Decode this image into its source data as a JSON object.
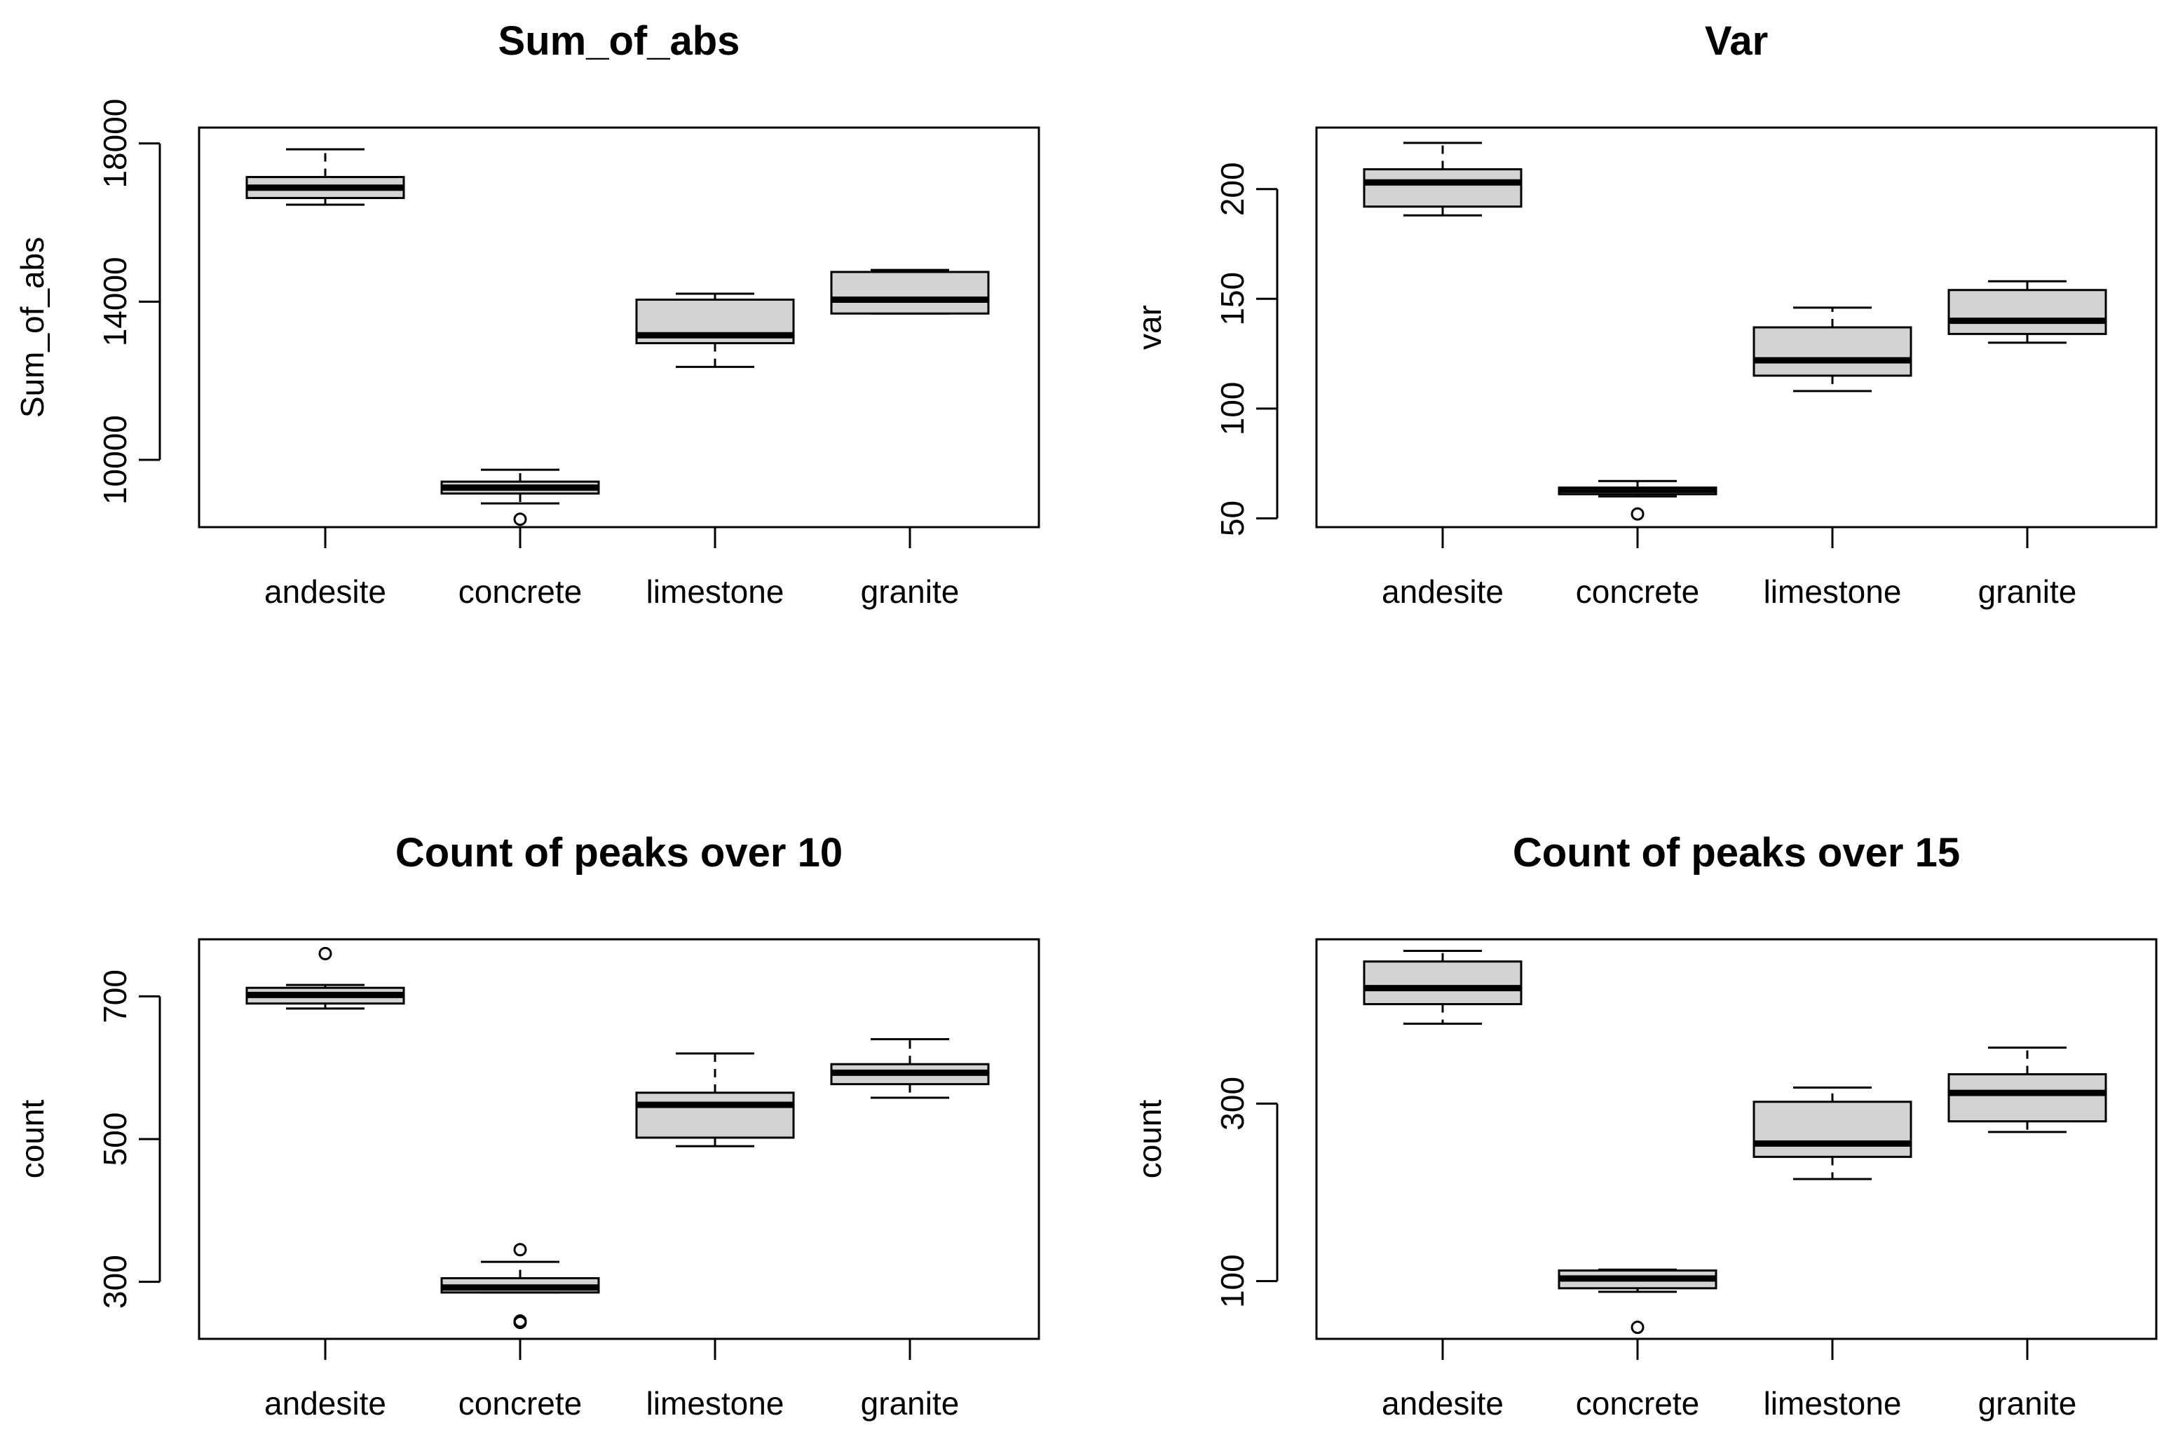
{
  "colors": {
    "box_fill": "#d3d3d3",
    "stroke": "#000000",
    "background": "#ffffff"
  },
  "chart_data": [
    {
      "type": "boxplot",
      "title": "Sum_of_abs",
      "xlabel": "",
      "ylabel": "Sum_of_abs",
      "categories": [
        "andesite",
        "concrete",
        "limestone",
        "granite"
      ],
      "yticks": [
        10000,
        14000,
        18000
      ],
      "ytick_labels": [
        "10000",
        "14000",
        "18000"
      ],
      "ylim": [
        8300,
        18400
      ],
      "boxes": [
        {
          "whisker_low": 16450,
          "q1": 16620,
          "median": 16880,
          "q3": 17150,
          "whisker_high": 17850,
          "outliers": []
        },
        {
          "whisker_low": 8900,
          "q1": 9150,
          "median": 9300,
          "q3": 9450,
          "whisker_high": 9750,
          "outliers": [
            8500
          ]
        },
        {
          "whisker_low": 12350,
          "q1": 12950,
          "median": 13150,
          "q3": 14050,
          "whisker_high": 14200,
          "outliers": []
        },
        {
          "whisker_low": 13700,
          "q1": 13700,
          "median": 14050,
          "q3": 14750,
          "whisker_high": 14800,
          "outliers": []
        }
      ]
    },
    {
      "type": "boxplot",
      "title": "Var",
      "xlabel": "",
      "ylabel": "var",
      "categories": [
        "andesite",
        "concrete",
        "limestone",
        "granite"
      ],
      "yticks": [
        50,
        100,
        150,
        200
      ],
      "ytick_labels": [
        "50",
        "100",
        "150",
        "200"
      ],
      "ylim": [
        46,
        228
      ],
      "boxes": [
        {
          "whisker_low": 188,
          "q1": 192,
          "median": 203,
          "q3": 209,
          "whisker_high": 221,
          "outliers": []
        },
        {
          "whisker_low": 60,
          "q1": 61,
          "median": 63,
          "q3": 64,
          "whisker_high": 67,
          "outliers": [
            52
          ]
        },
        {
          "whisker_low": 108,
          "q1": 115,
          "median": 122,
          "q3": 137,
          "whisker_high": 146,
          "outliers": []
        },
        {
          "whisker_low": 130,
          "q1": 134,
          "median": 140,
          "q3": 154,
          "whisker_high": 158,
          "outliers": []
        }
      ]
    },
    {
      "type": "boxplot",
      "title": "Count of peaks over 10",
      "xlabel": "",
      "ylabel": "count",
      "categories": [
        "andesite",
        "concrete",
        "limestone",
        "granite"
      ],
      "yticks": [
        300,
        500,
        700
      ],
      "ytick_labels": [
        "300",
        "500",
        "700"
      ],
      "ylim": [
        220,
        780
      ],
      "boxes": [
        {
          "whisker_low": 683,
          "q1": 690,
          "median": 702,
          "q3": 712,
          "whisker_high": 716,
          "outliers": [
            760
          ]
        },
        {
          "whisker_low": 285,
          "q1": 285,
          "median": 292,
          "q3": 305,
          "whisker_high": 328,
          "outliers": [
            345,
            245,
            243
          ]
        },
        {
          "whisker_low": 490,
          "q1": 502,
          "median": 548,
          "q3": 565,
          "whisker_high": 620,
          "outliers": []
        },
        {
          "whisker_low": 558,
          "q1": 577,
          "median": 593,
          "q3": 605,
          "whisker_high": 640,
          "outliers": []
        }
      ]
    },
    {
      "type": "boxplot",
      "title": "Count of peaks over 15",
      "xlabel": "",
      "ylabel": "count",
      "categories": [
        "andesite",
        "concrete",
        "limestone",
        "granite"
      ],
      "yticks": [
        100,
        300
      ],
      "ytick_labels": [
        "100",
        "300"
      ],
      "ylim": [
        35,
        485
      ],
      "boxes": [
        {
          "whisker_low": 390,
          "q1": 412,
          "median": 430,
          "q3": 460,
          "whisker_high": 472,
          "outliers": []
        },
        {
          "whisker_low": 88,
          "q1": 92,
          "median": 103,
          "q3": 112,
          "whisker_high": 113,
          "outliers": [
            48
          ]
        },
        {
          "whisker_low": 215,
          "q1": 240,
          "median": 255,
          "q3": 302,
          "whisker_high": 318,
          "outliers": []
        },
        {
          "whisker_low": 268,
          "q1": 280,
          "median": 312,
          "q3": 333,
          "whisker_high": 363,
          "outliers": []
        }
      ]
    }
  ]
}
